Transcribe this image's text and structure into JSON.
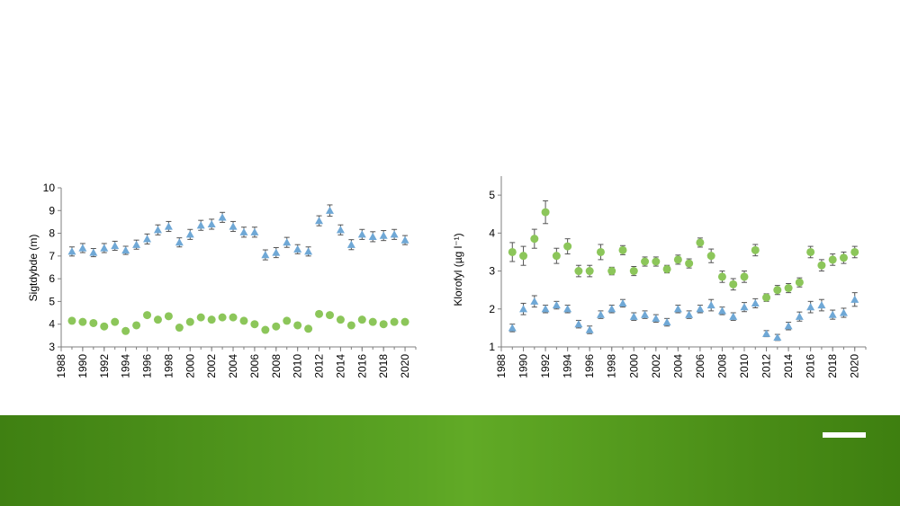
{
  "colors": {
    "triangle_series": "#6fa8d6",
    "circle_series": "#8cc65a",
    "axis": "#7f7f7f"
  },
  "chart_data": [
    {
      "type": "scatter",
      "ylabel": "Sigtdybde (m)",
      "ylim": [
        3,
        10
      ],
      "yticks": [
        3,
        4,
        5,
        6,
        7,
        8,
        9,
        10
      ],
      "xlim": [
        1988,
        2021
      ],
      "xticks": [
        1988,
        1990,
        1992,
        1994,
        1996,
        1998,
        2000,
        2002,
        2004,
        2006,
        2008,
        2010,
        2012,
        2014,
        2016,
        2018,
        2020
      ],
      "series": [
        {
          "marker": "triangle",
          "x": [
            1989,
            1990,
            1991,
            1992,
            1993,
            1994,
            1995,
            1996,
            1997,
            1998,
            1999,
            2000,
            2001,
            2002,
            2003,
            2004,
            2005,
            2006,
            2007,
            2008,
            2009,
            2010,
            2011,
            2012,
            2013,
            2014,
            2015,
            2016,
            2017,
            2018,
            2019,
            2020
          ],
          "y": [
            7.2,
            7.35,
            7.15,
            7.35,
            7.45,
            7.25,
            7.5,
            7.75,
            8.15,
            8.3,
            7.6,
            7.95,
            8.35,
            8.4,
            8.7,
            8.3,
            8.05,
            8.05,
            7.05,
            7.15,
            7.6,
            7.3,
            7.2,
            8.55,
            9.0,
            8.15,
            7.5,
            7.95,
            7.85,
            7.9,
            7.95,
            7.7
          ],
          "err": [
            0.2,
            0.2,
            0.18,
            0.2,
            0.2,
            0.18,
            0.2,
            0.22,
            0.22,
            0.22,
            0.2,
            0.22,
            0.22,
            0.22,
            0.22,
            0.22,
            0.22,
            0.22,
            0.22,
            0.22,
            0.22,
            0.2,
            0.2,
            0.22,
            0.25,
            0.22,
            0.22,
            0.22,
            0.22,
            0.22,
            0.22,
            0.2
          ]
        },
        {
          "marker": "circle",
          "x": [
            1989,
            1990,
            1991,
            1992,
            1993,
            1994,
            1995,
            1996,
            1997,
            1998,
            1999,
            2000,
            2001,
            2002,
            2003,
            2004,
            2005,
            2006,
            2007,
            2008,
            2009,
            2010,
            2011,
            2012,
            2013,
            2014,
            2015,
            2016,
            2017,
            2018,
            2019,
            2020
          ],
          "y": [
            4.15,
            4.1,
            4.05,
            3.9,
            4.1,
            3.7,
            3.95,
            4.4,
            4.2,
            4.35,
            3.85,
            4.1,
            4.3,
            4.2,
            4.3,
            4.3,
            4.15,
            4.0,
            3.75,
            3.9,
            4.15,
            3.95,
            3.8,
            4.45,
            4.4,
            4.2,
            3.95,
            4.2,
            4.1,
            4.0,
            4.1,
            4.1
          ],
          "err": [
            0.05,
            0.05,
            0.05,
            0.05,
            0.05,
            0.05,
            0.05,
            0.05,
            0.05,
            0.05,
            0.05,
            0.05,
            0.05,
            0.05,
            0.05,
            0.05,
            0.05,
            0.05,
            0.05,
            0.05,
            0.05,
            0.05,
            0.05,
            0.05,
            0.05,
            0.05,
            0.05,
            0.05,
            0.05,
            0.05,
            0.05,
            0.05
          ]
        }
      ]
    },
    {
      "type": "scatter",
      "ylabel": "Klorofyl (µg l⁻¹)",
      "ylim": [
        1,
        5.5
      ],
      "yticks": [
        1,
        2,
        3,
        4,
        5
      ],
      "xlim": [
        1988,
        2021
      ],
      "xticks": [
        1988,
        1990,
        1992,
        1994,
        1996,
        1998,
        2000,
        2002,
        2004,
        2006,
        2008,
        2010,
        2012,
        2014,
        2016,
        2018,
        2020
      ],
      "series": [
        {
          "marker": "triangle",
          "x": [
            1989,
            1990,
            1991,
            1992,
            1993,
            1994,
            1995,
            1996,
            1997,
            1998,
            1999,
            2000,
            2001,
            2002,
            2003,
            2004,
            2005,
            2006,
            2007,
            2008,
            2009,
            2010,
            2011,
            2012,
            2013,
            2014,
            2015,
            2016,
            2017,
            2018,
            2019,
            2020
          ],
          "y": [
            1.5,
            2.0,
            2.2,
            2.0,
            2.1,
            2.0,
            1.6,
            1.45,
            1.85,
            2.0,
            2.15,
            1.8,
            1.85,
            1.75,
            1.65,
            2.0,
            1.85,
            2.0,
            2.1,
            1.95,
            1.8,
            2.05,
            2.15,
            1.35,
            1.25,
            1.55,
            1.8,
            2.05,
            2.1,
            1.85,
            1.9,
            2.25
          ],
          "err": [
            0.1,
            0.15,
            0.15,
            0.1,
            0.1,
            0.1,
            0.1,
            0.1,
            0.1,
            0.1,
            0.1,
            0.1,
            0.1,
            0.1,
            0.1,
            0.1,
            0.1,
            0.1,
            0.15,
            0.1,
            0.1,
            0.12,
            0.12,
            0.08,
            0.08,
            0.1,
            0.12,
            0.15,
            0.15,
            0.12,
            0.12,
            0.18
          ]
        },
        {
          "marker": "circle",
          "x": [
            1989,
            1990,
            1991,
            1992,
            1993,
            1994,
            1995,
            1996,
            1997,
            1998,
            1999,
            2000,
            2001,
            2002,
            2003,
            2004,
            2005,
            2006,
            2007,
            2008,
            2009,
            2010,
            2011,
            2012,
            2013,
            2014,
            2015,
            2016,
            2017,
            2018,
            2019,
            2020
          ],
          "y": [
            3.5,
            3.4,
            3.85,
            4.55,
            3.4,
            3.65,
            3.0,
            3.0,
            3.5,
            3.0,
            3.55,
            3.0,
            3.25,
            3.25,
            3.05,
            3.3,
            3.2,
            3.75,
            3.4,
            2.85,
            2.65,
            2.85,
            3.55,
            2.3,
            2.5,
            2.55,
            2.7,
            3.5,
            3.15,
            3.3,
            3.35,
            3.5
          ],
          "err": [
            0.25,
            0.25,
            0.25,
            0.3,
            0.2,
            0.2,
            0.15,
            0.15,
            0.2,
            0.1,
            0.12,
            0.12,
            0.12,
            0.12,
            0.1,
            0.12,
            0.12,
            0.12,
            0.18,
            0.15,
            0.15,
            0.15,
            0.15,
            0.1,
            0.12,
            0.12,
            0.12,
            0.15,
            0.15,
            0.15,
            0.15,
            0.15
          ]
        }
      ]
    }
  ]
}
